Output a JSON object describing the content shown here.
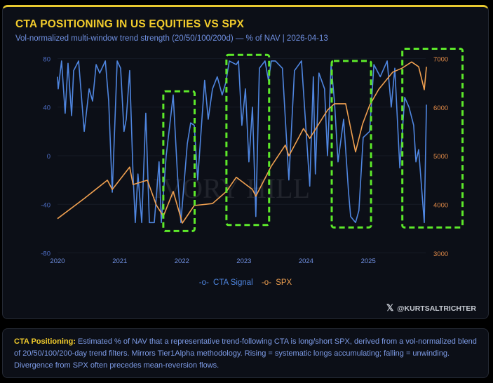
{
  "header": {
    "title": "CTA POSITIONING IN US EQUITIES VS SPX",
    "subtitle": "Vol-normalized multi-window trend strength (20/50/100/200d) — % of NAV | 2026-04-13"
  },
  "watermark": "IVORY HILL",
  "handle": {
    "icon": "x-logo-icon",
    "text": "@KURTSALTRICHTER"
  },
  "note": {
    "label": "CTA Positioning:",
    "text": " Estimated % of NAV that a representative trend-following CTA is long/short SPX, derived from a vol-normalized blend of 20/50/100/200-day trend filters. Mirrors Tier1Alpha methodology. Rising = systematic longs accumulating; falling = unwinding. Divergence from SPX often precedes mean-reversion flows."
  },
  "colors": {
    "accent": "#f2cc2c",
    "cta": "#4f86e0",
    "spx": "#f0a050",
    "highlight": "#5de82a"
  },
  "chart_data": {
    "type": "line",
    "x_ticks": [
      "2020",
      "2021",
      "2022",
      "2023",
      "2024",
      "2025"
    ],
    "y_left": {
      "ticks": [
        80,
        40,
        0,
        -40,
        -80
      ],
      "range": [
        -80,
        80
      ]
    },
    "y_right": {
      "ticks": [
        7000,
        6000,
        5000,
        4000,
        3000
      ],
      "range": [
        3000,
        7000
      ]
    },
    "grid": true,
    "legend_position": "bottom",
    "series": [
      {
        "name": "CTA Signal",
        "axis": "left",
        "color": "#4f86e0",
        "points": [
          [
            "2020-01-01",
            65
          ],
          [
            "2020-01-05",
            55
          ],
          [
            "2020-01-25",
            78
          ],
          [
            "2020-02-15",
            35
          ],
          [
            "2020-03-03",
            76
          ],
          [
            "2020-03-24",
            33
          ],
          [
            "2020-04-05",
            70
          ],
          [
            "2020-05-04",
            78
          ],
          [
            "2020-06-06",
            20
          ],
          [
            "2020-07-05",
            55
          ],
          [
            "2020-07-25",
            45
          ],
          [
            "2020-08-15",
            75
          ],
          [
            "2020-09-05",
            68
          ],
          [
            "2020-10-08",
            78
          ],
          [
            "2020-10-28",
            45
          ],
          [
            "2020-11-18",
            -30
          ],
          [
            "2020-12-17",
            78
          ],
          [
            "2021-01-06",
            72
          ],
          [
            "2021-01-26",
            20
          ],
          [
            "2021-02-08",
            30
          ],
          [
            "2021-02-28",
            70
          ],
          [
            "2021-03-20",
            -15
          ],
          [
            "2021-04-02",
            -55
          ],
          [
            "2021-04-18",
            -15
          ],
          [
            "2021-05-10",
            -55
          ],
          [
            "2021-06-03",
            35
          ],
          [
            "2021-06-24",
            -55
          ],
          [
            "2021-07-23",
            -55
          ],
          [
            "2021-08-20",
            -5
          ],
          [
            "2021-09-02",
            -55
          ],
          [
            "2021-10-01",
            0
          ],
          [
            "2021-11-11",
            50
          ],
          [
            "2021-12-06",
            -15
          ],
          [
            "2021-12-26",
            -55
          ],
          [
            "2022-02-02",
            10
          ],
          [
            "2022-02-22",
            27
          ],
          [
            "2022-03-15",
            25
          ],
          [
            "2022-04-04",
            -20
          ],
          [
            "2022-05-15",
            62
          ],
          [
            "2022-06-05",
            30
          ],
          [
            "2022-06-30",
            55
          ],
          [
            "2022-07-28",
            65
          ],
          [
            "2022-08-26",
            50
          ],
          [
            "2022-09-16",
            60
          ],
          [
            "2022-10-07",
            78
          ],
          [
            "2022-11-17",
            75
          ],
          [
            "2022-11-30",
            78
          ],
          [
            "2022-12-20",
            25
          ],
          [
            "2023-01-10",
            55
          ],
          [
            "2023-01-30",
            -5
          ],
          [
            "2023-02-20",
            40
          ],
          [
            "2023-03-12",
            -50
          ],
          [
            "2023-04-02",
            72
          ],
          [
            "2023-05-05",
            78
          ],
          [
            "2023-05-25",
            62
          ],
          [
            "2023-06-11",
            78
          ],
          [
            "2023-07-05",
            78
          ],
          [
            "2023-08-15",
            72
          ],
          [
            "2023-09-22",
            -20
          ],
          [
            "2023-10-25",
            70
          ],
          [
            "2023-12-05",
            78
          ],
          [
            "2024-01-23",
            -25
          ],
          [
            "2024-02-13",
            65
          ],
          [
            "2024-02-25",
            -15
          ],
          [
            "2024-03-17",
            68
          ],
          [
            "2024-04-19",
            55
          ],
          [
            "2024-05-06",
            0
          ],
          [
            "2024-05-27",
            75
          ],
          [
            "2024-06-16",
            45
          ],
          [
            "2024-07-07",
            -5
          ],
          [
            "2024-08-09",
            30
          ],
          [
            "2024-09-07",
            -30
          ],
          [
            "2024-09-19",
            -50
          ],
          [
            "2024-10-18",
            -55
          ],
          [
            "2024-11-07",
            -45
          ],
          [
            "2024-12-02",
            15
          ],
          [
            "2025-01-09",
            20
          ],
          [
            "2025-02-03",
            75
          ],
          [
            "2025-03-12",
            65
          ],
          [
            "2025-04-22",
            78
          ],
          [
            "2025-05-16",
            40
          ],
          [
            "2025-06-06",
            72
          ],
          [
            "2025-07-05",
            -10
          ],
          [
            "2025-08-03",
            48
          ],
          [
            "2025-08-28",
            40
          ],
          [
            "2025-09-25",
            25
          ],
          [
            "2025-10-08",
            -5
          ],
          [
            "2025-10-24",
            5
          ],
          [
            "2025-11-26",
            -55
          ],
          [
            "2025-12-09",
            42
          ]
        ]
      },
      {
        "name": "SPX",
        "axis": "right",
        "color": "#f0a050",
        "points": [
          [
            "2020-01-01",
            3710
          ],
          [
            "2020-06-06",
            4124
          ],
          [
            "2020-10-20",
            4500
          ],
          [
            "2020-11-18",
            4310
          ],
          [
            "2021-02-28",
            4770
          ],
          [
            "2021-03-20",
            4410
          ],
          [
            "2021-06-12",
            4500
          ],
          [
            "2021-08-04",
            3990
          ],
          [
            "2021-09-14",
            3760
          ],
          [
            "2021-11-11",
            4270
          ],
          [
            "2022-01-04",
            3620
          ],
          [
            "2022-03-15",
            3980
          ],
          [
            "2022-06-30",
            4020
          ],
          [
            "2022-09-20",
            4270
          ],
          [
            "2022-11-17",
            4560
          ],
          [
            "2023-02-20",
            4310
          ],
          [
            "2023-03-12",
            4170
          ],
          [
            "2023-06-11",
            4790
          ],
          [
            "2023-09-01",
            5220
          ],
          [
            "2023-09-22",
            5000
          ],
          [
            "2023-12-17",
            5560
          ],
          [
            "2024-01-23",
            5360
          ],
          [
            "2024-05-06",
            5940
          ],
          [
            "2024-06-16",
            6070
          ],
          [
            "2024-08-21",
            6070
          ],
          [
            "2024-10-18",
            5080
          ],
          [
            "2024-11-28",
            5650
          ],
          [
            "2025-01-09",
            6040
          ],
          [
            "2025-03-04",
            6370
          ],
          [
            "2025-05-25",
            6720
          ],
          [
            "2025-07-17",
            6800
          ],
          [
            "2025-09-13",
            6930
          ],
          [
            "2025-10-24",
            6830
          ],
          [
            "2025-11-26",
            6360
          ],
          [
            "2025-12-09",
            6830
          ]
        ]
      }
    ],
    "highlights": [
      {
        "start": "2021-09-14",
        "end": "2022-03-17",
        "low": -62,
        "high": 53
      },
      {
        "start": "2022-09-20",
        "end": "2023-05-29",
        "low": -57,
        "high": 83
      },
      {
        "start": "2024-05-31",
        "end": "2025-01-17",
        "low": -59,
        "high": 78
      },
      {
        "start": "2025-07-20",
        "end": "2026-07-09",
        "low": -59,
        "high": 88
      }
    ]
  }
}
